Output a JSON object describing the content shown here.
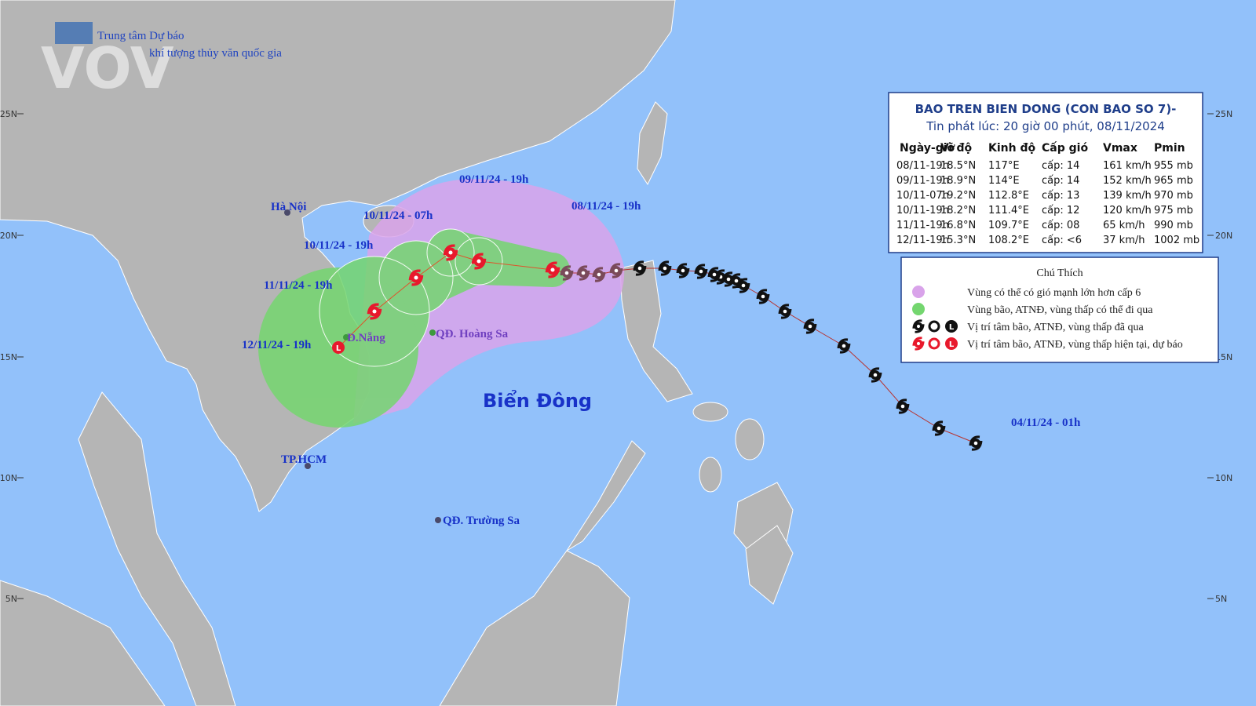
{
  "logo": {
    "org_line1": "Trung tâm Dự báo",
    "org_line2": "khí tượng thủy văn quốc gia",
    "watermark": "VOV"
  },
  "bulletin": {
    "title": "BAO TREN BIEN DONG (CON BAO SO 7)-",
    "issued": "Tin phát lúc: 20 giờ 00 phút, 08/11/2024",
    "columns": [
      "Ngày-giờ",
      "Vĩ độ",
      "Kinh độ",
      "Cấp gió",
      "Vmax",
      "Pmin"
    ],
    "rows": [
      [
        "08/11-19h",
        "18.5°N",
        "117°E",
        "cấp: 14",
        "161 km/h",
        "955 mb"
      ],
      [
        "09/11-19h",
        "18.9°N",
        "114°E",
        "cấp: 14",
        "152 km/h",
        "965 mb"
      ],
      [
        "10/11-07h",
        "19.2°N",
        "112.8°E",
        "cấp: 13",
        "139 km/h",
        "970 mb"
      ],
      [
        "10/11-19h",
        "18.2°N",
        "111.4°E",
        "cấp: 12",
        "120 km/h",
        "975 mb"
      ],
      [
        "11/11-19h",
        "16.8°N",
        "109.7°E",
        "cấp: 08",
        "65 km/h",
        "990 mb"
      ],
      [
        "12/11-19h",
        "15.3°N",
        "108.2°E",
        "cấp: <6",
        "37 km/h",
        "1002 mb"
      ]
    ]
  },
  "legend": {
    "title": "Chú Thích",
    "items": [
      "Vùng có thể có gió mạnh lớn hơn cấp 6",
      "Vùng bão, ATNĐ, vùng thấp có thể đi qua",
      "Vị trí tâm bão, ATNĐ, vùng thấp đã qua",
      "Vị trí tâm bão, ATNĐ, vùng thấp hiện tại, dự báo"
    ],
    "symbol_low": "L"
  },
  "track_labels": [
    "09/11/24 - 19h",
    "10/11/24 - 07h",
    "08/11/24 - 19h",
    "10/11/24 - 19h",
    "11/11/24 - 19h",
    "12/11/24 - 19h",
    "04/11/24 - 01h"
  ],
  "places": [
    "Hà Nội",
    "Đ.Nẵng",
    "QĐ. Hoàng Sa",
    "TP.HCM",
    "QĐ. Trường Sa"
  ],
  "sea_name": "Biển Đông",
  "lat_labels": [
    "25N",
    "20N",
    "15N",
    "10N",
    "5N"
  ]
}
